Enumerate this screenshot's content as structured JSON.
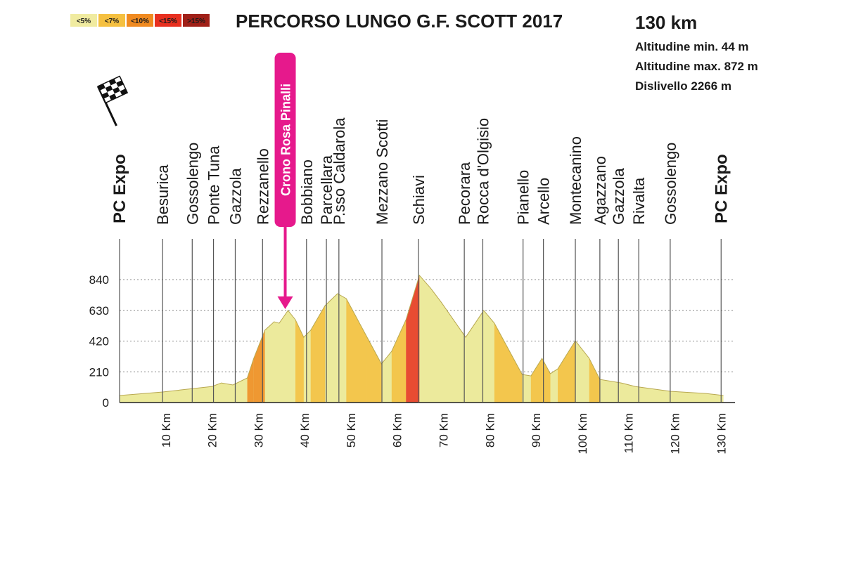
{
  "chart_data": {
    "type": "area",
    "title": "PERCORSO LUNGO G.F. SCOTT 2017",
    "distance": "130 km",
    "stats": [
      "Altitudine min. 44 m",
      "Altitudine max. 872 m",
      "Dislivello 2266 m"
    ],
    "legend": [
      {
        "label": "<5%",
        "value": 5,
        "color": "#f0eba0"
      },
      {
        "label": "<7%",
        "value": 7,
        "color": "#f5c040"
      },
      {
        "label": "<10%",
        "value": 10,
        "color": "#f08a20"
      },
      {
        "label": "<15%",
        "value": 15,
        "color": "#e83020"
      },
      {
        "label": ">15%",
        "value": 15,
        "color": "#a02018"
      }
    ],
    "x": [
      0,
      9.3,
      20,
      22,
      24.5,
      27.6,
      29,
      31.4,
      33.4,
      34.5,
      36.4,
      38,
      39.8,
      41.3,
      44.4,
      47.1,
      49,
      53.5,
      56.6,
      58.8,
      61.9,
      64.8,
      67.2,
      69.5,
      74.8,
      78.7,
      81,
      87,
      88.9,
      91.3,
      93.1,
      94.7,
      98.5,
      101.5,
      103.8,
      108.4,
      111.4,
      119,
      126.7,
      130.5
    ],
    "values": [
      48,
      72,
      110,
      134,
      120,
      168,
      302,
      494,
      552,
      542,
      629,
      566,
      446,
      494,
      662,
      744,
      710,
      446,
      264,
      350,
      566,
      869,
      782,
      686,
      446,
      629,
      542,
      192,
      182,
      302,
      197,
      230,
      422,
      302,
      158,
      134,
      110,
      77,
      62,
      48
    ],
    "base_color": "#ecea9c",
    "xlim": [
      0,
      133
    ],
    "ylim": [
      0,
      840
    ],
    "yticks": [
      0,
      210,
      420,
      630,
      840
    ],
    "xticks": [
      {
        "value": 10,
        "label": "10 Km"
      },
      {
        "value": 20,
        "label": "20 Km"
      },
      {
        "value": 30,
        "label": "30 Km"
      },
      {
        "value": 40,
        "label": "40 Km"
      },
      {
        "value": 50,
        "label": "50 Km"
      },
      {
        "value": 60,
        "label": "60 Km"
      },
      {
        "value": 70,
        "label": "70 Km"
      },
      {
        "value": 80,
        "label": "80 Km"
      },
      {
        "value": 90,
        "label": "90 Km"
      },
      {
        "value": 100,
        "label": "100 Km"
      },
      {
        "value": 110,
        "label": "110 Km"
      },
      {
        "value": 120,
        "label": "120 Km"
      },
      {
        "value": 130,
        "label": "130 Km"
      }
    ],
    "grid": true,
    "places": [
      {
        "name": "PC Expo",
        "km": 0,
        "emphasis": true
      },
      {
        "name": "Besurica",
        "km": 9.3
      },
      {
        "name": "Gossolengo",
        "km": 15.7
      },
      {
        "name": "Ponte Tuna",
        "km": 20.3
      },
      {
        "name": "Gazzola",
        "km": 25
      },
      {
        "name": "Rezzanello",
        "km": 30.9
      },
      {
        "name": "Bobbiano",
        "km": 40.4
      },
      {
        "name": "Parcellara",
        "km": 44.7
      },
      {
        "name": "P.sso Caldarola",
        "km": 47.4
      },
      {
        "name": "Mezzano Scotti",
        "km": 56.7
      },
      {
        "name": "Schiavi",
        "km": 64.6
      },
      {
        "name": "Pecorara",
        "km": 74.5
      },
      {
        "name": "Rocca d'Olgisio",
        "km": 78.5
      },
      {
        "name": "Pianello",
        "km": 87.2
      },
      {
        "name": "Arcello",
        "km": 91.6
      },
      {
        "name": "Montecanino",
        "km": 98.5
      },
      {
        "name": "Agazzano",
        "km": 103.8
      },
      {
        "name": "Gazzola",
        "km": 107.8
      },
      {
        "name": "Rivalta",
        "km": 112.2
      },
      {
        "name": "Gossolengo",
        "km": 119
      },
      {
        "name": "PC Expo",
        "km": 130,
        "emphasis": true
      }
    ],
    "highlight": {
      "name": "Crono Rosa Pinalli",
      "km": 35.8,
      "elevation": 629,
      "color": "#e6198c"
    }
  }
}
